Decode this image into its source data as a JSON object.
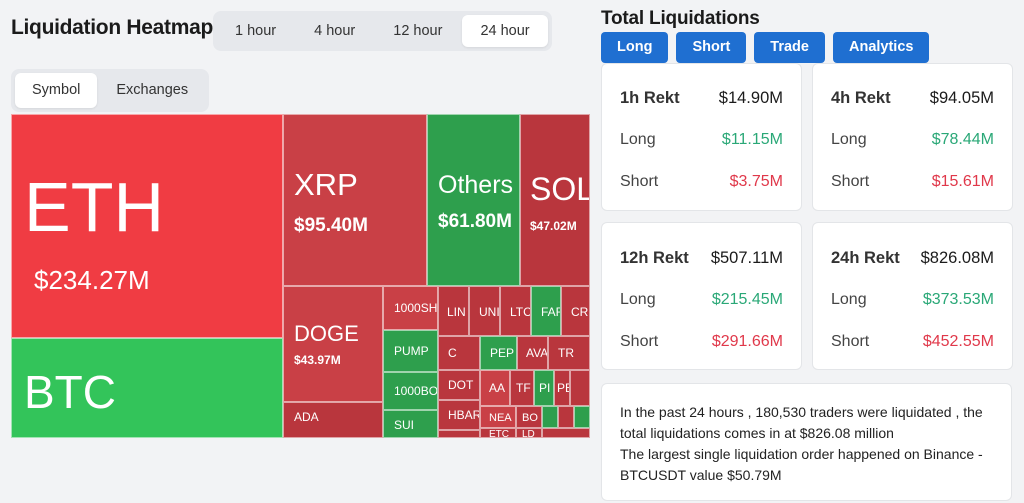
{
  "header": {
    "title": "Liquidation Heatmap"
  },
  "time_filters": [
    {
      "label": "1 hour",
      "active": false
    },
    {
      "label": "4 hour",
      "active": false
    },
    {
      "label": "12 hour",
      "active": false
    },
    {
      "label": "24 hour",
      "active": true
    }
  ],
  "group_filters": [
    {
      "label": "Symbol",
      "active": true
    },
    {
      "label": "Exchanges",
      "active": false
    }
  ],
  "heatmap": {
    "tiles": {
      "eth": {
        "symbol": "ETH",
        "value": "$234.27M"
      },
      "btc": {
        "symbol": "BTC"
      },
      "xrp": {
        "symbol": "XRP",
        "value": "$95.40M"
      },
      "others": {
        "symbol": "Others",
        "value": "$61.80M"
      },
      "sol": {
        "symbol": "SOL",
        "value": "$47.02M"
      },
      "doge": {
        "symbol": "DOGE",
        "value": "$43.97M"
      },
      "ada": {
        "symbol": "ADA"
      },
      "shib1000": {
        "symbol": "1000SH"
      },
      "pump": {
        "symbol": "PUMP"
      },
      "bonk1000": {
        "symbol": "1000BO"
      },
      "sui": {
        "symbol": "SUI"
      },
      "lin": {
        "symbol": "LIN"
      },
      "uni": {
        "symbol": "UNI"
      },
      "ltc": {
        "symbol": "LTC"
      },
      "far": {
        "symbol": "FAR"
      },
      "cro": {
        "symbol": "CRO"
      },
      "c": {
        "symbol": "C"
      },
      "pep": {
        "symbol": "PEP"
      },
      "ava": {
        "symbol": "AVA"
      },
      "tr": {
        "symbol": "TR"
      },
      "dot": {
        "symbol": "DOT"
      },
      "aa": {
        "symbol": "AA"
      },
      "tf": {
        "symbol": "TF"
      },
      "pi": {
        "symbol": "PI"
      },
      "pb": {
        "symbol": "PB"
      },
      "hbar": {
        "symbol": "HBAR"
      },
      "nea": {
        "symbol": "NEA"
      },
      "bo": {
        "symbol": "BO"
      },
      "etc": {
        "symbol": "ETC"
      },
      "ld": {
        "symbol": "LD"
      }
    }
  },
  "totals": {
    "title": "Total Liquidations",
    "tabs": [
      {
        "label": "Long",
        "active": false
      },
      {
        "label": "Short",
        "active": false
      },
      {
        "label": "Trade",
        "active": true
      },
      {
        "label": "Analytics",
        "active": false
      }
    ],
    "cards": [
      {
        "period": "1h Rekt",
        "total": "$14.90M",
        "long_label": "Long",
        "long": "$11.15M",
        "short_label": "Short",
        "short": "$3.75M"
      },
      {
        "period": "4h Rekt",
        "total": "$94.05M",
        "long_label": "Long",
        "long": "$78.44M",
        "short_label": "Short",
        "short": "$15.61M"
      },
      {
        "period": "12h Rekt",
        "total": "$507.11M",
        "long_label": "Long",
        "long": "$215.45M",
        "short_label": "Short",
        "short": "$291.66M"
      },
      {
        "period": "24h Rekt",
        "total": "$826.08M",
        "long_label": "Long",
        "long": "$373.53M",
        "short_label": "Short",
        "short": "$452.55M"
      }
    ],
    "summary_line1": "In the past 24 hours , 180,530 traders were liquidated , the total liquidations comes in at $826.08 million",
    "summary_line2": "The largest single liquidation order happened on Binance - BTCUSDT value $50.79M"
  },
  "colors": {
    "accent": "#1f6fd1",
    "long_green": "#2aa877",
    "short_red": "#e0384a"
  }
}
